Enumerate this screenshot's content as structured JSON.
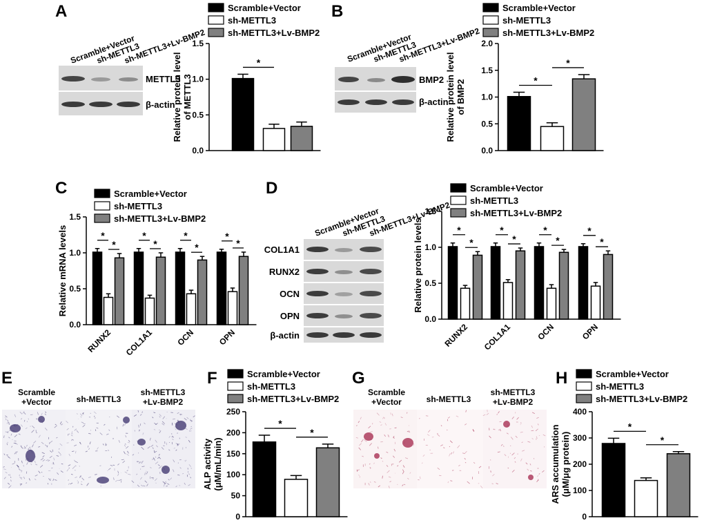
{
  "colors": {
    "scramble": "#000000",
    "sh": "#ffffff",
    "lv": "#808080",
    "alp_stain": "#3a2f6b",
    "ars_stain": "#a3244a"
  },
  "legend": {
    "scramble": "Scramble+Vector",
    "sh": "sh-METTL3",
    "lv": "sh-METTL3+Lv-BMP2"
  },
  "panels": {
    "A": {
      "letter": "A",
      "lanes": [
        "Scramble+Vector",
        "sh-METTL3",
        "sh-METTL3+Lv-BMP2"
      ],
      "blots": [
        "METTL3",
        "β-actin"
      ]
    },
    "B": {
      "letter": "B",
      "lanes": [
        "Scramble+Vector",
        "sh-METTL3",
        "sh-METTL3+Lv-BMP2"
      ],
      "blots": [
        "BMP2",
        "β-actin"
      ]
    },
    "C": {
      "letter": "C"
    },
    "D": {
      "letter": "D",
      "lanes": [
        "Scramble+Vector",
        "sh-METTL3",
        "sh-METTL3+Lv-BMP2"
      ],
      "blots": [
        "COL1A1",
        "RUNX2",
        "OCN",
        "OPN",
        "β-actin"
      ]
    },
    "E": {
      "letter": "E",
      "conditions": [
        [
          "Scramble",
          "+Vector"
        ],
        [
          "sh-METTL3"
        ],
        [
          "sh-METTL3",
          "+Lv-BMP2"
        ]
      ]
    },
    "F": {
      "letter": "F"
    },
    "G": {
      "letter": "G",
      "conditions": [
        [
          "Scramble",
          "+Vector"
        ],
        [
          "sh-METTL3"
        ],
        [
          "sh-METTL3",
          "+Lv-BMP2"
        ]
      ]
    },
    "H": {
      "letter": "H"
    }
  },
  "chart_data": [
    {
      "id": "A",
      "type": "bar",
      "ylabel": [
        "Relative protein level",
        "of METTL3"
      ],
      "categories": [
        ""
      ],
      "ylim": [
        0,
        1.5
      ],
      "yticks": [
        "0.0",
        "0.5",
        "1.0",
        "1.5"
      ],
      "yticksVal": [
        0,
        0.5,
        1.0,
        1.5
      ],
      "series": [
        {
          "name": "Scramble+Vector",
          "values": [
            1.01
          ],
          "errors": [
            0.06
          ]
        },
        {
          "name": "sh-METTL3",
          "values": [
            0.31
          ],
          "errors": [
            0.06
          ]
        },
        {
          "name": "sh-METTL3+Lv-BMP2",
          "values": [
            0.34
          ],
          "errors": [
            0.06
          ]
        }
      ],
      "significance": [
        {
          "from": [
            0,
            0
          ],
          "to": [
            0,
            1
          ],
          "label": "*"
        }
      ]
    },
    {
      "id": "B",
      "type": "bar",
      "ylabel": [
        "Relative protein level",
        "of BMP2"
      ],
      "categories": [
        ""
      ],
      "ylim": [
        0,
        2.0
      ],
      "yticks": [
        "0.0",
        "0.5",
        "1.0",
        "1.5",
        "2.0"
      ],
      "yticksVal": [
        0,
        0.5,
        1.0,
        1.5,
        2.0
      ],
      "series": [
        {
          "name": "Scramble+Vector",
          "values": [
            1.01
          ],
          "errors": [
            0.08
          ]
        },
        {
          "name": "sh-METTL3",
          "values": [
            0.45
          ],
          "errors": [
            0.07
          ]
        },
        {
          "name": "sh-METTL3+Lv-BMP2",
          "values": [
            1.34
          ],
          "errors": [
            0.08
          ]
        }
      ],
      "significance": [
        {
          "from": [
            0,
            0
          ],
          "to": [
            0,
            1
          ],
          "label": "*"
        },
        {
          "from": [
            0,
            1
          ],
          "to": [
            0,
            2
          ],
          "label": "*"
        }
      ]
    },
    {
      "id": "C",
      "type": "bar",
      "ylabel": [
        "Relative mRNA levels"
      ],
      "categories": [
        "RUNX2",
        "COL1A1",
        "OCN",
        "OPN"
      ],
      "ylim": [
        0,
        1.5
      ],
      "yticks": [
        "0.0",
        "0.5",
        "1.0",
        "1.5"
      ],
      "yticksVal": [
        0,
        0.5,
        1.0,
        1.5
      ],
      "series": [
        {
          "name": "Scramble+Vector",
          "values": [
            1.01,
            1.01,
            1.01,
            1.01
          ],
          "errors": [
            0.05,
            0.05,
            0.05,
            0.04
          ]
        },
        {
          "name": "sh-METTL3",
          "values": [
            0.38,
            0.37,
            0.43,
            0.46
          ],
          "errors": [
            0.05,
            0.04,
            0.05,
            0.05
          ]
        },
        {
          "name": "sh-METTL3+Lv-BMP2",
          "values": [
            0.93,
            0.94,
            0.9,
            0.95
          ],
          "errors": [
            0.06,
            0.06,
            0.05,
            0.06
          ]
        }
      ],
      "significance": [
        {
          "from": [
            0,
            0
          ],
          "to": [
            0,
            1
          ],
          "label": "*"
        },
        {
          "from": [
            0,
            1
          ],
          "to": [
            0,
            2
          ],
          "label": "*"
        },
        {
          "from": [
            1,
            0
          ],
          "to": [
            1,
            1
          ],
          "label": "*"
        },
        {
          "from": [
            1,
            1
          ],
          "to": [
            1,
            2
          ],
          "label": "*"
        },
        {
          "from": [
            2,
            0
          ],
          "to": [
            2,
            1
          ],
          "label": "*"
        },
        {
          "from": [
            2,
            1
          ],
          "to": [
            2,
            2
          ],
          "label": "*"
        },
        {
          "from": [
            3,
            0
          ],
          "to": [
            3,
            1
          ],
          "label": "*"
        },
        {
          "from": [
            3,
            1
          ],
          "to": [
            3,
            2
          ],
          "label": "*"
        }
      ]
    },
    {
      "id": "D",
      "type": "bar",
      "ylabel": [
        "Relative protein levels"
      ],
      "categories": [
        "RUNX2",
        "COL1A1",
        "OCN",
        "OPN"
      ],
      "ylim": [
        0,
        1.5
      ],
      "yticks": [
        "0.0",
        "0.5",
        "1.0",
        "1.5"
      ],
      "yticksVal": [
        0,
        0.5,
        1.0,
        1.5
      ],
      "series": [
        {
          "name": "Scramble+Vector",
          "values": [
            1.01,
            1.01,
            1.01,
            1.01
          ],
          "errors": [
            0.05,
            0.05,
            0.05,
            0.04
          ]
        },
        {
          "name": "sh-METTL3",
          "values": [
            0.43,
            0.51,
            0.43,
            0.46
          ],
          "errors": [
            0.04,
            0.04,
            0.05,
            0.05
          ]
        },
        {
          "name": "sh-METTL3+Lv-BMP2",
          "values": [
            0.89,
            0.95,
            0.93,
            0.9
          ],
          "errors": [
            0.05,
            0.04,
            0.04,
            0.05
          ]
        }
      ],
      "significance": [
        {
          "from": [
            0,
            0
          ],
          "to": [
            0,
            1
          ],
          "label": "*"
        },
        {
          "from": [
            0,
            1
          ],
          "to": [
            0,
            2
          ],
          "label": "*"
        },
        {
          "from": [
            1,
            0
          ],
          "to": [
            1,
            1
          ],
          "label": "*"
        },
        {
          "from": [
            1,
            1
          ],
          "to": [
            1,
            2
          ],
          "label": "*"
        },
        {
          "from": [
            2,
            0
          ],
          "to": [
            2,
            1
          ],
          "label": "*"
        },
        {
          "from": [
            2,
            1
          ],
          "to": [
            2,
            2
          ],
          "label": "*"
        },
        {
          "from": [
            3,
            0
          ],
          "to": [
            3,
            1
          ],
          "label": "*"
        },
        {
          "from": [
            3,
            1
          ],
          "to": [
            3,
            2
          ],
          "label": "*"
        }
      ]
    },
    {
      "id": "F",
      "type": "bar",
      "ylabel": [
        "ALP activity",
        "(μM/mL/min)"
      ],
      "categories": [
        ""
      ],
      "ylim": [
        0,
        250
      ],
      "yticks": [
        "0",
        "50",
        "100",
        "150",
        "200",
        "250"
      ],
      "yticksVal": [
        0,
        50,
        100,
        150,
        200,
        250
      ],
      "series": [
        {
          "name": "Scramble+Vector",
          "values": [
            178
          ],
          "errors": [
            16
          ]
        },
        {
          "name": "sh-METTL3",
          "values": [
            89
          ],
          "errors": [
            9
          ]
        },
        {
          "name": "sh-METTL3+Lv-BMP2",
          "values": [
            164
          ],
          "errors": [
            9
          ]
        }
      ],
      "significance": [
        {
          "from": [
            0,
            0
          ],
          "to": [
            0,
            1
          ],
          "label": "*"
        },
        {
          "from": [
            0,
            1
          ],
          "to": [
            0,
            2
          ],
          "label": "*"
        }
      ]
    },
    {
      "id": "H",
      "type": "bar",
      "ylabel": [
        "ARS accumulation",
        "(μM/μg protein)"
      ],
      "categories": [
        ""
      ],
      "ylim": [
        0,
        400
      ],
      "yticks": [
        "0",
        "100",
        "200",
        "300",
        "400"
      ],
      "yticksVal": [
        0,
        100,
        200,
        300,
        400
      ],
      "series": [
        {
          "name": "Scramble+Vector",
          "values": [
            279
          ],
          "errors": [
            20
          ]
        },
        {
          "name": "sh-METTL3",
          "values": [
            138
          ],
          "errors": [
            10
          ]
        },
        {
          "name": "sh-METTL3+Lv-BMP2",
          "values": [
            240
          ],
          "errors": [
            8
          ]
        }
      ],
      "significance": [
        {
          "from": [
            0,
            0
          ],
          "to": [
            0,
            1
          ],
          "label": "*"
        },
        {
          "from": [
            0,
            1
          ],
          "to": [
            0,
            2
          ],
          "label": "*"
        }
      ]
    }
  ]
}
